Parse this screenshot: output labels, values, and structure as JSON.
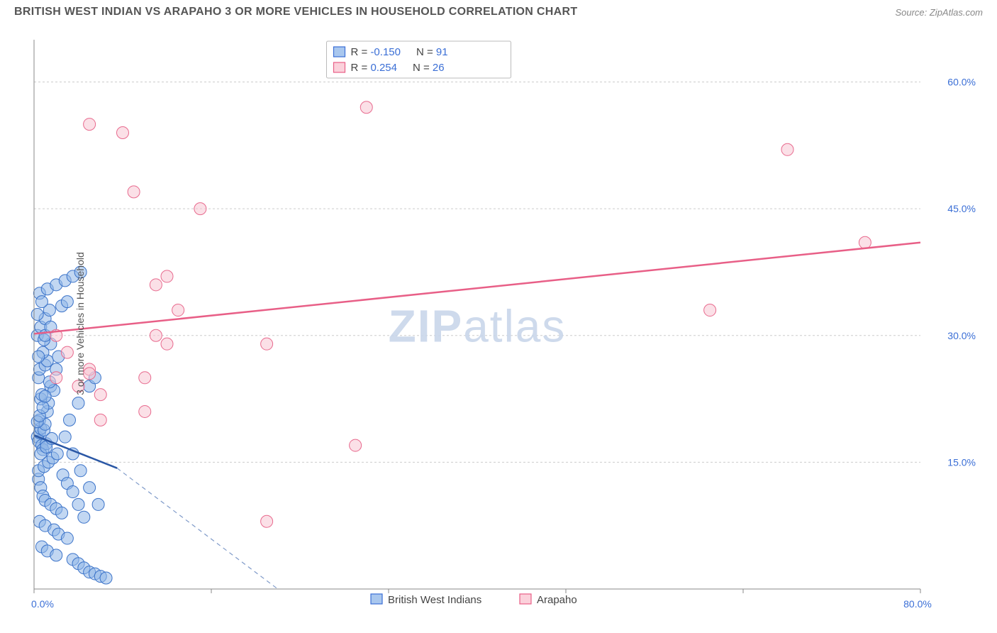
{
  "header": {
    "title": "BRITISH WEST INDIAN VS ARAPAHO 3 OR MORE VEHICLES IN HOUSEHOLD CORRELATION CHART",
    "source": "Source: ZipAtlas.com"
  },
  "ylabel": "3 or more Vehicles in Household",
  "watermark": {
    "part1": "ZIP",
    "part2": "atlas"
  },
  "chart": {
    "type": "scatter",
    "xlim": [
      0,
      80
    ],
    "ylim": [
      0,
      65
    ],
    "x_ticks": [
      0,
      80
    ],
    "x_tick_labels": [
      "0.0%",
      "80.0%"
    ],
    "x_minor_ticks": [
      16,
      32,
      48,
      64
    ],
    "y_ticks": [
      15,
      30,
      45,
      60
    ],
    "y_tick_labels": [
      "15.0%",
      "30.0%",
      "45.0%",
      "60.0%"
    ],
    "grid_color": "#cccccc",
    "background_color": "#ffffff",
    "point_radius": 8.5,
    "series": [
      {
        "name": "British West Indians",
        "color_fill": "#8fb7e8",
        "color_stroke": "#3b73c9",
        "R": "-0.150",
        "N": "91",
        "trend": {
          "x1": 0,
          "y1": 18.2,
          "x2": 7.5,
          "y2": 14.3,
          "dash_to_x": 22,
          "dash_to_y": 0
        },
        "points": [
          [
            0.3,
            18
          ],
          [
            0.4,
            17.5
          ],
          [
            0.5,
            18.5
          ],
          [
            0.6,
            19
          ],
          [
            0.7,
            17
          ],
          [
            0.8,
            16.5
          ],
          [
            0.5,
            20
          ],
          [
            0.9,
            18.8
          ],
          [
            1.0,
            19.5
          ],
          [
            1.1,
            17.2
          ],
          [
            1.2,
            21
          ],
          [
            1.3,
            22
          ],
          [
            0.6,
            22.5
          ],
          [
            0.7,
            23
          ],
          [
            1.5,
            24
          ],
          [
            1.8,
            23.5
          ],
          [
            0.4,
            25
          ],
          [
            0.5,
            26
          ],
          [
            1.0,
            26.5
          ],
          [
            1.2,
            27
          ],
          [
            2.0,
            26
          ],
          [
            2.2,
            27.5
          ],
          [
            0.8,
            28
          ],
          [
            1.5,
            29
          ],
          [
            0.3,
            30
          ],
          [
            0.6,
            31
          ],
          [
            1.0,
            32
          ],
          [
            1.4,
            33
          ],
          [
            2.5,
            33.5
          ],
          [
            3.0,
            34
          ],
          [
            0.5,
            35
          ],
          [
            1.2,
            35.5
          ],
          [
            2.0,
            36
          ],
          [
            2.8,
            36.5
          ],
          [
            3.5,
            37
          ],
          [
            4.2,
            37.5
          ],
          [
            0.4,
            13
          ],
          [
            0.6,
            12
          ],
          [
            0.8,
            11
          ],
          [
            1.0,
            10.5
          ],
          [
            1.5,
            10
          ],
          [
            2.0,
            9.5
          ],
          [
            2.5,
            9
          ],
          [
            0.5,
            8
          ],
          [
            1.0,
            7.5
          ],
          [
            1.8,
            7
          ],
          [
            2.2,
            6.5
          ],
          [
            3.0,
            6
          ],
          [
            0.7,
            5
          ],
          [
            1.2,
            4.5
          ],
          [
            2.0,
            4
          ],
          [
            3.5,
            3.5
          ],
          [
            4.0,
            3
          ],
          [
            4.5,
            2.5
          ],
          [
            5.0,
            2
          ],
          [
            5.5,
            1.8
          ],
          [
            6.0,
            1.5
          ],
          [
            6.5,
            1.3
          ],
          [
            0.4,
            14
          ],
          [
            0.9,
            14.5
          ],
          [
            1.3,
            15
          ],
          [
            1.7,
            15.5
          ],
          [
            2.1,
            16
          ],
          [
            2.6,
            13.5
          ],
          [
            3.0,
            12.5
          ],
          [
            3.5,
            11.5
          ],
          [
            4.0,
            10
          ],
          [
            4.5,
            8.5
          ],
          [
            0.3,
            19.8
          ],
          [
            0.5,
            20.5
          ],
          [
            0.8,
            21.5
          ],
          [
            1.0,
            22.8
          ],
          [
            1.4,
            24.5
          ],
          [
            0.6,
            16
          ],
          [
            1.1,
            16.8
          ],
          [
            1.6,
            17.8
          ],
          [
            0.4,
            27.5
          ],
          [
            0.9,
            29.5
          ],
          [
            0.3,
            32.5
          ],
          [
            0.7,
            34
          ],
          [
            1.0,
            30
          ],
          [
            1.5,
            31
          ],
          [
            5.0,
            24
          ],
          [
            5.5,
            25
          ],
          [
            4.0,
            22
          ],
          [
            3.2,
            20
          ],
          [
            2.8,
            18
          ],
          [
            3.5,
            16
          ],
          [
            4.2,
            14
          ],
          [
            5.0,
            12
          ],
          [
            5.8,
            10
          ]
        ]
      },
      {
        "name": "Arapaho",
        "color_fill": "#f7c7d3",
        "color_stroke": "#e86a8e",
        "R": "0.254",
        "N": "26",
        "trend": {
          "x1": 0,
          "y1": 30.2,
          "x2": 80,
          "y2": 41
        },
        "points": [
          [
            5,
            55
          ],
          [
            8,
            54
          ],
          [
            30,
            57
          ],
          [
            9,
            47
          ],
          [
            15,
            45
          ],
          [
            12,
            37
          ],
          [
            11,
            36
          ],
          [
            13,
            33
          ],
          [
            11,
            30
          ],
          [
            12,
            29
          ],
          [
            21,
            29
          ],
          [
            5,
            26
          ],
          [
            5,
            25.5
          ],
          [
            2,
            25
          ],
          [
            10,
            25
          ],
          [
            6,
            23
          ],
          [
            10,
            21
          ],
          [
            29,
            17
          ],
          [
            21,
            8
          ],
          [
            61,
            33
          ],
          [
            68,
            52
          ],
          [
            75,
            41
          ],
          [
            4,
            24
          ],
          [
            3,
            28
          ],
          [
            2,
            30
          ],
          [
            6,
            20
          ]
        ]
      }
    ]
  },
  "styling": {
    "title_color": "#555555",
    "tick_label_color": "#3b6fd6",
    "stats_value_color": "#3b6fd6",
    "font_family": "Arial"
  }
}
